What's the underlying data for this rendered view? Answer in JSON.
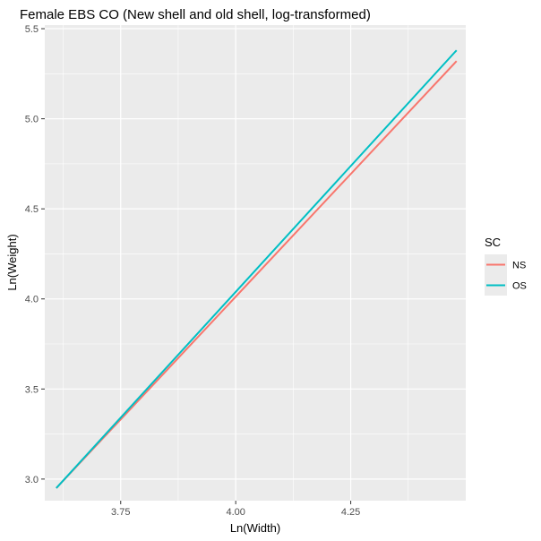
{
  "chart_data": {
    "type": "line",
    "title": "Female EBS CO (New shell and old shell, log-transformed)",
    "xlabel": "Ln(Width)",
    "ylabel": "Ln(Weight)",
    "xlim": [
      3.585,
      4.5
    ],
    "ylim": [
      2.88,
      5.52
    ],
    "x_ticks": [
      3.75,
      4.0,
      4.25
    ],
    "x_tick_labels": [
      "3.75",
      "4.00",
      "4.25"
    ],
    "y_ticks": [
      3.0,
      3.5,
      4.0,
      4.5,
      5.0,
      5.5
    ],
    "y_tick_labels": [
      "3.0",
      "3.5",
      "4.0",
      "4.5",
      "5.0",
      "5.5"
    ],
    "grid": true,
    "legend": {
      "title": "SC",
      "position": "right"
    },
    "series": [
      {
        "name": "NS",
        "color": "#F8766D",
        "x": [
          3.61,
          4.48
        ],
        "y": [
          2.95,
          5.32
        ]
      },
      {
        "name": "OS",
        "color": "#00BFC4",
        "x": [
          3.61,
          4.48
        ],
        "y": [
          2.95,
          5.38
        ]
      }
    ]
  }
}
